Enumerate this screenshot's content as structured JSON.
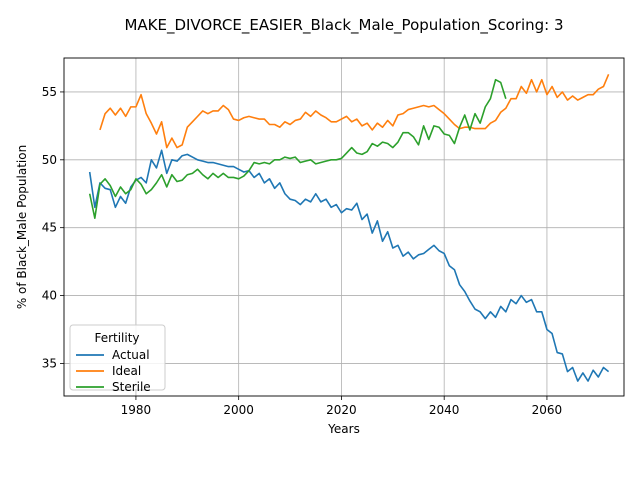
{
  "chart_data": {
    "type": "line",
    "title": "MAKE_DIVORCE_EASIER_Black_Male_Population_Scoring: 3",
    "xlabel": "Years",
    "ylabel": "% of Black_Male Population",
    "xlim": [
      1966,
      2075
    ],
    "ylim": [
      32.6,
      57.5
    ],
    "xticks": [
      1980,
      2000,
      2020,
      2040,
      2060
    ],
    "yticks": [
      35,
      40,
      45,
      50,
      55
    ],
    "grid": true,
    "legend": {
      "title": "Fertility",
      "placement": "lower-left"
    },
    "x_start": 1971,
    "x_end": 2070,
    "series": [
      {
        "name": "Actual",
        "color": "#1f77b4",
        "values": [
          49.1,
          46.5,
          48.3,
          47.9,
          47.8,
          46.5,
          47.3,
          46.8,
          48.0,
          48.5,
          48.7,
          48.3,
          50.0,
          49.4,
          50.7,
          49.0,
          50.0,
          49.9,
          50.3,
          50.4,
          50.2,
          50.0,
          49.9,
          49.8,
          49.8,
          49.7,
          49.6,
          49.5,
          49.5,
          49.3,
          49.1,
          49.2,
          48.7,
          49.0,
          48.3,
          48.6,
          47.9,
          48.3,
          47.5,
          47.1,
          47.0,
          46.7,
          47.1,
          46.9,
          47.5,
          46.9,
          47.1,
          46.5,
          46.7,
          46.1,
          46.4,
          46.3,
          46.8,
          45.6,
          46.0,
          44.6,
          45.5,
          44.0,
          44.7,
          43.5,
          43.7,
          42.9,
          43.2,
          42.7,
          43.0,
          43.1,
          43.4,
          43.7,
          43.3,
          43.1,
          42.2,
          41.9,
          40.8,
          40.3,
          39.6,
          39.0,
          38.8,
          38.3,
          38.8,
          38.4,
          39.2,
          38.8,
          39.7,
          39.4,
          40.0,
          39.5,
          39.7,
          38.8,
          38.8,
          37.5,
          37.2,
          35.8,
          35.7,
          34.4,
          34.7,
          33.7,
          34.3,
          33.7,
          34.5,
          34.0,
          34.7,
          34.4
        ]
      },
      {
        "name": "Ideal",
        "color": "#ff7f0e",
        "values": [
          null,
          null,
          52.2,
          53.4,
          53.8,
          53.3,
          53.8,
          53.2,
          53.9,
          53.9,
          54.8,
          53.4,
          52.7,
          51.9,
          52.8,
          50.9,
          51.6,
          50.9,
          51.1,
          52.4,
          52.8,
          53.2,
          53.6,
          53.4,
          53.6,
          53.6,
          54.0,
          53.7,
          53.0,
          52.9,
          53.1,
          53.2,
          53.1,
          53.0,
          53.0,
          52.6,
          52.6,
          52.4,
          52.8,
          52.6,
          52.9,
          53.0,
          53.5,
          53.2,
          53.6,
          53.3,
          53.1,
          52.8,
          52.8,
          53.0,
          53.2,
          52.8,
          53.0,
          52.5,
          52.7,
          52.2,
          52.7,
          52.4,
          52.9,
          52.5,
          53.3,
          53.4,
          53.7,
          53.8,
          53.9,
          54.0,
          53.9,
          54.0,
          53.7,
          53.4,
          53.0,
          52.6,
          52.3,
          52.4,
          52.4,
          52.3,
          52.3,
          52.3,
          52.7,
          52.9,
          53.5,
          53.8,
          54.5,
          54.5,
          55.4,
          54.9,
          55.9,
          55.0,
          55.9,
          54.8,
          55.4,
          54.6,
          55.0,
          54.4,
          54.7,
          54.4,
          54.6,
          54.8,
          54.8,
          55.2,
          55.4,
          56.3
        ]
      },
      {
        "name": "Sterile",
        "color": "#2ca02c",
        "values": [
          47.5,
          45.7,
          48.2,
          48.6,
          48.1,
          47.3,
          48.0,
          47.5,
          47.8,
          48.6,
          48.2,
          47.5,
          47.8,
          48.3,
          48.9,
          48.0,
          48.9,
          48.4,
          48.5,
          48.9,
          49.0,
          49.3,
          48.9,
          48.6,
          49.0,
          48.7,
          49.0,
          48.7,
          48.7,
          48.6,
          48.8,
          49.2,
          49.8,
          49.7,
          49.8,
          49.7,
          50.0,
          50.0,
          50.2,
          50.1,
          50.2,
          49.8,
          49.9,
          50.0,
          49.7,
          49.8,
          49.9,
          50.0,
          50.0,
          50.1,
          50.5,
          50.9,
          50.5,
          50.4,
          50.6,
          51.2,
          51.0,
          51.3,
          51.2,
          50.9,
          51.3,
          52.0,
          52.0,
          51.7,
          51.1,
          52.5,
          51.5,
          52.5,
          52.4,
          51.9,
          51.8,
          51.2,
          52.4,
          53.3,
          52.2,
          53.4,
          52.7,
          53.9,
          54.5,
          55.9,
          55.7,
          54.5
        ]
      }
    ]
  }
}
